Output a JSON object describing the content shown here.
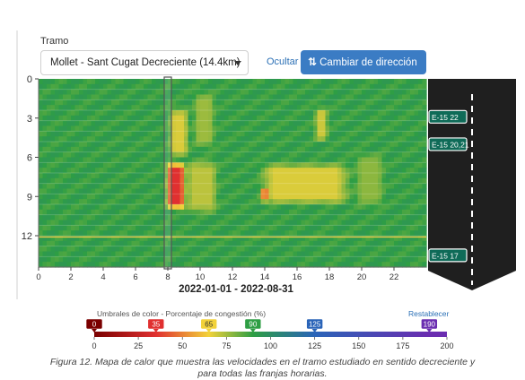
{
  "controls": {
    "tramo_label": "Tramo",
    "tramo_selected": "Mollet - Sant Cugat Decreciente (14.4km)",
    "hide_link": "Ocultar",
    "direction_button": "Cambiar de dirección"
  },
  "legend": {
    "title": "Umbrales de color - Porcentaje de congestión (%)",
    "reset_link": "Restablecer",
    "markers": [
      {
        "value": 0,
        "color": "#7a0000"
      },
      {
        "value": 35,
        "color": "#e03030"
      },
      {
        "value": 65,
        "color": "#f2d23a"
      },
      {
        "value": 90,
        "color": "#2e9e44"
      },
      {
        "value": 125,
        "color": "#2a64b8"
      },
      {
        "value": 190,
        "color": "#6a2db0"
      }
    ],
    "ticks": [
      0,
      25,
      50,
      75,
      100,
      125,
      150,
      175,
      200
    ]
  },
  "chart_data": {
    "type": "heatmap",
    "xlabel": "2022-01-01 - 2022-08-31",
    "ylabel": "",
    "xlim": [
      0,
      24
    ],
    "ylim": [
      0,
      14.4
    ],
    "x_ticks": [
      0,
      2,
      4,
      6,
      8,
      10,
      12,
      14,
      16,
      18,
      20,
      22
    ],
    "y_ticks": [
      0,
      3,
      6,
      9,
      12
    ],
    "x_unit": "hour",
    "y_unit": "km",
    "cursor_hour": 8,
    "reference_line_km": 12.1,
    "cmap": [
      "#7a0000",
      "#e03030",
      "#f2d23a",
      "#2e9e44",
      "#2a64b8",
      "#6a2db0"
    ],
    "color_range": [
      0,
      200
    ],
    "baseline_congestion": 90,
    "hotspots": [
      {
        "hour_from": 7.8,
        "hour_to": 9.2,
        "km_from": 6.2,
        "km_to": 10.2,
        "congestion": 35
      },
      {
        "hour_from": 8.0,
        "hour_to": 9.4,
        "km_from": 2.0,
        "km_to": 6.2,
        "congestion": 68
      },
      {
        "hour_from": 9.0,
        "hour_to": 11.2,
        "km_from": 6.0,
        "km_to": 10.5,
        "congestion": 72
      },
      {
        "hour_from": 9.5,
        "hour_to": 11.0,
        "km_from": 0.8,
        "km_to": 5.5,
        "congestion": 76
      },
      {
        "hour_from": 13.5,
        "hour_to": 19.5,
        "km_from": 6.3,
        "km_to": 9.8,
        "congestion": 68
      },
      {
        "hour_from": 13.7,
        "hour_to": 14.3,
        "km_from": 8.2,
        "km_to": 9.5,
        "congestion": 35
      },
      {
        "hour_from": 17.0,
        "hour_to": 18.0,
        "km_from": 2.0,
        "km_to": 5.0,
        "congestion": 70
      },
      {
        "hour_from": 19.5,
        "hour_to": 21.5,
        "km_from": 5.5,
        "km_to": 10.0,
        "congestion": 78
      }
    ],
    "road_markers": [
      {
        "label": "E-15 22",
        "km": 2.9
      },
      {
        "label": "E-15 20,21",
        "km": 5.0
      },
      {
        "label": "E-15 17",
        "km": 13.5
      }
    ]
  },
  "caption": {
    "line1": "Figura 12. Mapa de calor que muestra las velocidades en el tramo estudiado en sentido decreciente y",
    "line2": "para todas las franjas horarias."
  }
}
